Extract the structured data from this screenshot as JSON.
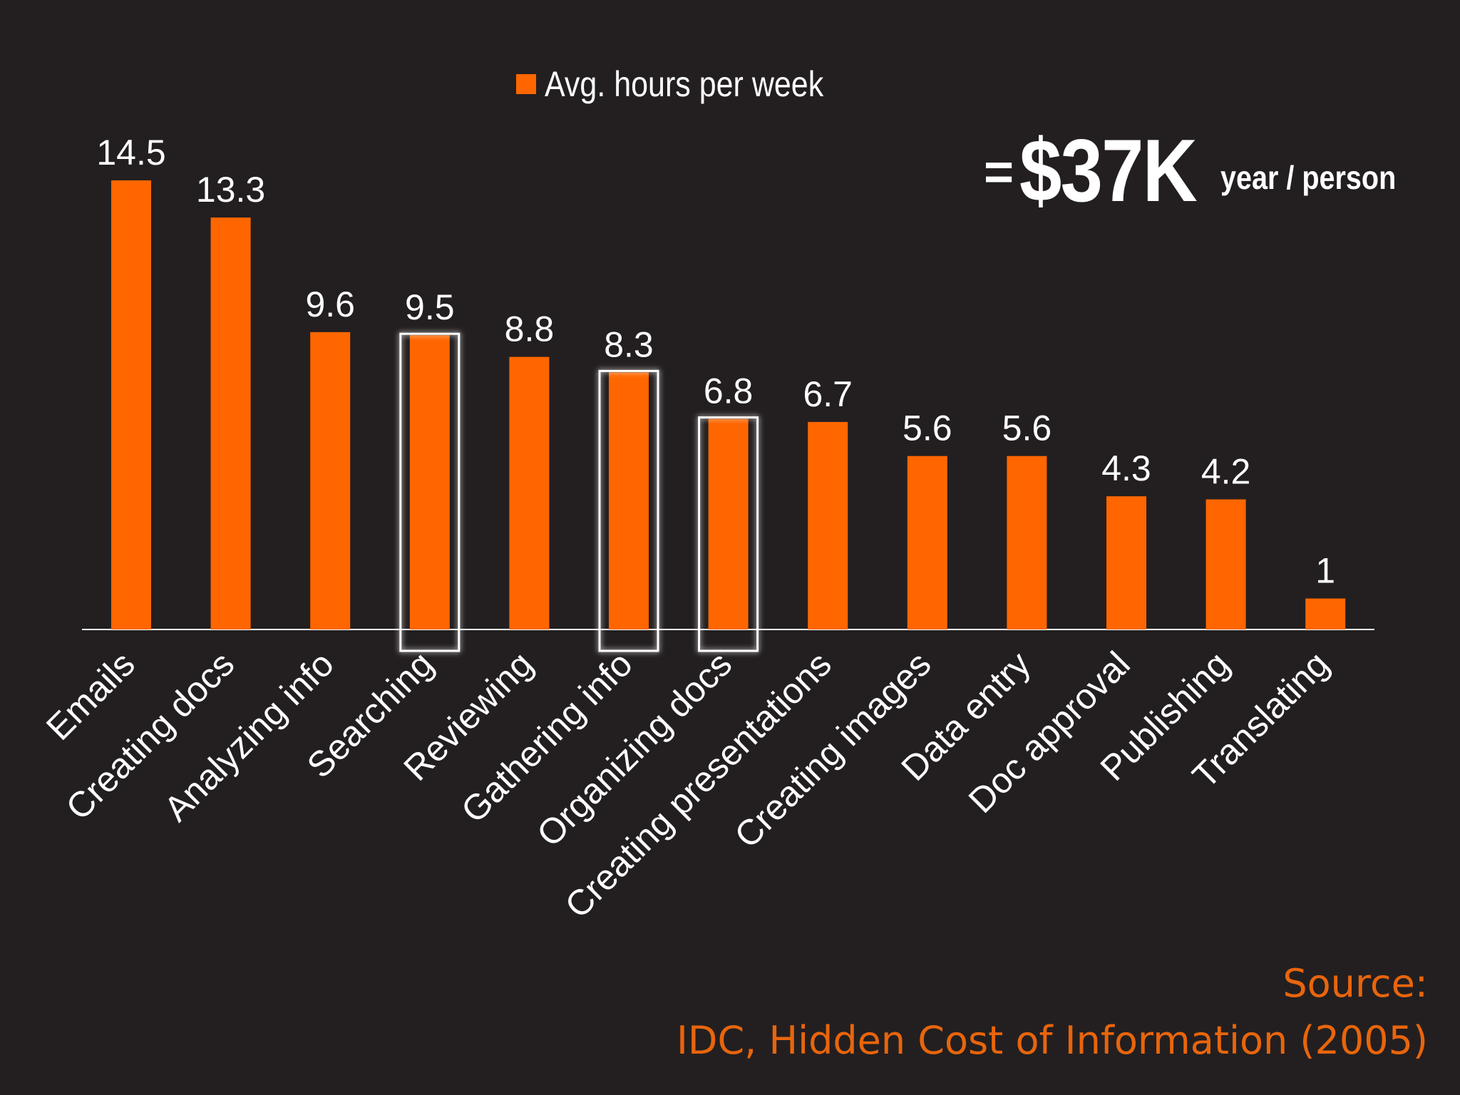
{
  "colors": {
    "background": "#231f20",
    "bar": "#ff6600",
    "text": "#ffffff",
    "source_text": "#e8650c"
  },
  "legend": {
    "label": "Avg. hours per week"
  },
  "callout": {
    "equals": "=",
    "amount": "$37K",
    "unit": "year / person"
  },
  "source": {
    "line1": "Source:",
    "line2": "IDC, Hidden Cost of Information (2005)"
  },
  "chart_data": {
    "type": "bar",
    "categories": [
      "Emails",
      "Creating docs",
      "Analyzing info",
      "Searching",
      "Reviewing",
      "Gathering info",
      "Organizing docs",
      "Creating presentations",
      "Creating images",
      "Data entry",
      "Doc approval",
      "Publishing",
      "Translating"
    ],
    "series": [
      {
        "name": "Avg. hours per week",
        "values": [
          14.5,
          13.3,
          9.6,
          9.5,
          8.8,
          8.3,
          6.8,
          6.7,
          5.6,
          5.6,
          4.3,
          4.2,
          1
        ]
      }
    ],
    "value_labels": [
      "14.5",
      "13.3",
      "9.6",
      "9.5",
      "8.8",
      "8.3",
      "6.8",
      "6.7",
      "5.6",
      "5.6",
      "4.3",
      "4.2",
      "1"
    ],
    "highlighted": [
      "Searching",
      "Gathering info",
      "Organizing docs"
    ],
    "ylim": [
      0,
      14.5
    ],
    "grid": false,
    "legend_position": "top-center",
    "title": "",
    "xlabel": "",
    "ylabel": ""
  }
}
